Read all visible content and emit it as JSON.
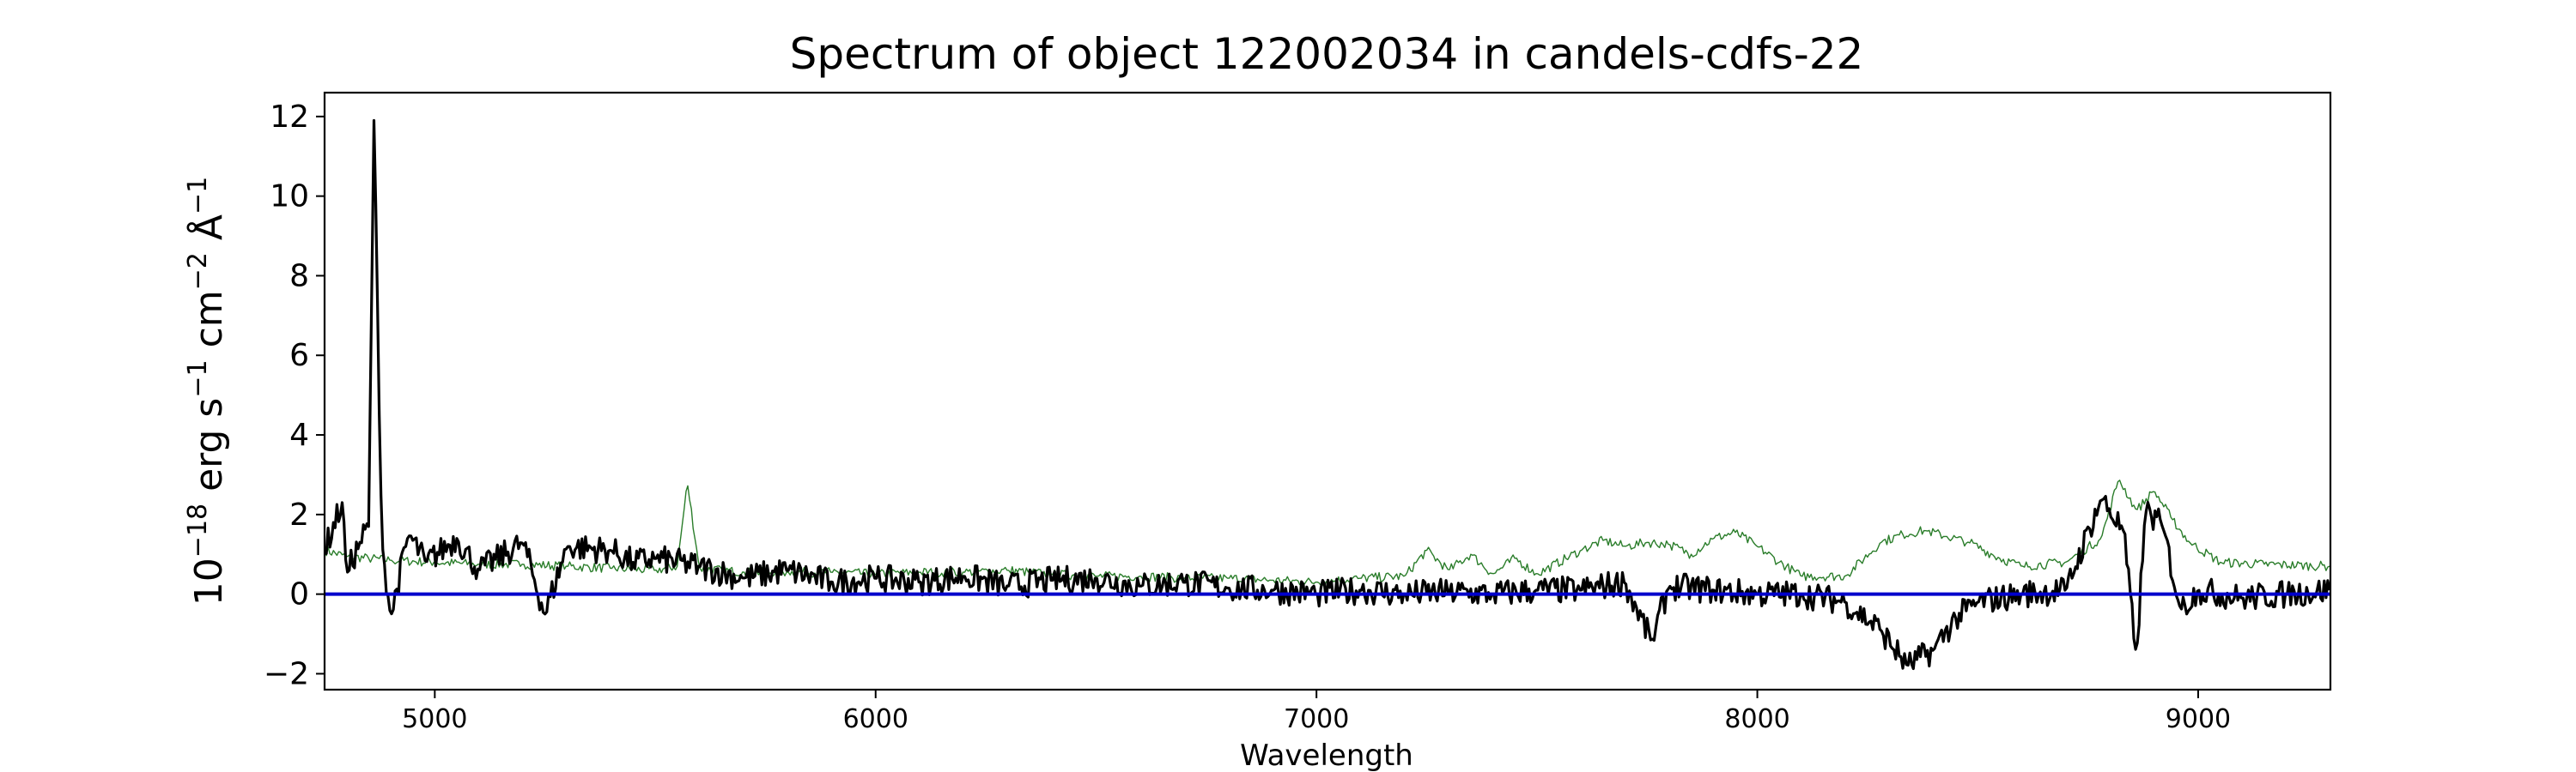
{
  "chart_data": {
    "type": "line",
    "title": "Spectrum of object 122002034 in candels-cdfs-22",
    "xlabel": "Wavelength",
    "ylabel_base": "10",
    "ylabel_exp": "−18",
    "ylabel_rest": " erg s",
    "ylabel_s_exp": "−1",
    "ylabel_cm": " cm",
    "ylabel_cm_exp": "−2",
    "ylabel_ang": " Å",
    "ylabel_ang_exp": "−1",
    "xlim": [
      4750,
      9300
    ],
    "ylim": [
      -2.4,
      12.6
    ],
    "xticks": [
      5000,
      6000,
      7000,
      8000,
      9000
    ],
    "xtick_labels": [
      "5000",
      "6000",
      "7000",
      "8000",
      "9000"
    ],
    "yticks": [
      -2,
      0,
      2,
      4,
      6,
      8,
      10,
      12
    ],
    "ytick_labels": [
      "−2",
      "0",
      "2",
      "4",
      "6",
      "8",
      "10",
      "12"
    ],
    "grid": false,
    "series": [
      {
        "role": "noise",
        "color": "#2a7d2a",
        "points": [
          [
            4750,
            1.1
          ],
          [
            4800,
            0.95
          ],
          [
            4850,
            0.9
          ],
          [
            4900,
            0.85
          ],
          [
            5000,
            0.8
          ],
          [
            5100,
            0.75
          ],
          [
            5200,
            0.75
          ],
          [
            5300,
            0.7
          ],
          [
            5400,
            0.65
          ],
          [
            5500,
            0.6
          ],
          [
            5550,
            0.7
          ],
          [
            5573,
            2.8
          ],
          [
            5600,
            0.65
          ],
          [
            5700,
            0.55
          ],
          [
            5800,
            0.55
          ],
          [
            5900,
            0.55
          ],
          [
            6000,
            0.5
          ],
          [
            6100,
            0.55
          ],
          [
            6200,
            0.55
          ],
          [
            6300,
            0.6
          ],
          [
            6400,
            0.5
          ],
          [
            6500,
            0.45
          ],
          [
            6600,
            0.45
          ],
          [
            6700,
            0.4
          ],
          [
            6800,
            0.4
          ],
          [
            6900,
            0.35
          ],
          [
            7000,
            0.3
          ],
          [
            7100,
            0.4
          ],
          [
            7200,
            0.45
          ],
          [
            7250,
            1.1
          ],
          [
            7300,
            0.6
          ],
          [
            7350,
            1.0
          ],
          [
            7400,
            0.5
          ],
          [
            7450,
            0.9
          ],
          [
            7500,
            0.5
          ],
          [
            7600,
            1.1
          ],
          [
            7650,
            1.35
          ],
          [
            7700,
            1.2
          ],
          [
            7750,
            1.3
          ],
          [
            7800,
            1.25
          ],
          [
            7850,
            1.0
          ],
          [
            7900,
            1.4
          ],
          [
            7950,
            1.55
          ],
          [
            8000,
            1.2
          ],
          [
            8050,
            0.8
          ],
          [
            8100,
            0.45
          ],
          [
            8200,
            0.45
          ],
          [
            8280,
            1.3
          ],
          [
            8330,
            1.5
          ],
          [
            8380,
            1.6
          ],
          [
            8430,
            1.45
          ],
          [
            8480,
            1.3
          ],
          [
            8550,
            0.9
          ],
          [
            8600,
            0.7
          ],
          [
            8700,
            0.8
          ],
          [
            8780,
            1.4
          ],
          [
            8820,
            2.9
          ],
          [
            8860,
            2.1
          ],
          [
            8900,
            2.6
          ],
          [
            8940,
            1.9
          ],
          [
            8980,
            1.3
          ],
          [
            9050,
            0.8
          ],
          [
            9150,
            0.75
          ],
          [
            9300,
            0.7
          ]
        ]
      },
      {
        "role": "flux",
        "color": "#000000",
        "points": [
          [
            4750,
            1.1
          ],
          [
            4790,
            2.3
          ],
          [
            4800,
            0.5
          ],
          [
            4830,
            1.3
          ],
          [
            4850,
            1.7
          ],
          [
            4862,
            11.9
          ],
          [
            4880,
            1.3
          ],
          [
            4900,
            -0.6
          ],
          [
            4940,
            1.5
          ],
          [
            4980,
            0.8
          ],
          [
            5050,
            1.4
          ],
          [
            5100,
            0.6
          ],
          [
            5200,
            1.3
          ],
          [
            5250,
            -0.5
          ],
          [
            5300,
            1.2
          ],
          [
            5400,
            1.1
          ],
          [
            5450,
            0.8
          ],
          [
            5500,
            0.9
          ],
          [
            5600,
            0.7
          ],
          [
            5700,
            0.4
          ],
          [
            5800,
            0.6
          ],
          [
            5900,
            0.3
          ],
          [
            6000,
            0.4
          ],
          [
            6100,
            0.3
          ],
          [
            6200,
            0.45
          ],
          [
            6300,
            0.2
          ],
          [
            6400,
            0.35
          ],
          [
            6500,
            0.4
          ],
          [
            6600,
            0.2
          ],
          [
            6700,
            0.3
          ],
          [
            6800,
            0.15
          ],
          [
            6900,
            0.1
          ],
          [
            7000,
            0.0
          ],
          [
            7100,
            0.1
          ],
          [
            7200,
            0.0
          ],
          [
            7300,
            0.05
          ],
          [
            7400,
            0.0
          ],
          [
            7500,
            0.1
          ],
          [
            7600,
            0.1
          ],
          [
            7700,
            0.3
          ],
          [
            7760,
            -1.2
          ],
          [
            7800,
            0.2
          ],
          [
            7900,
            0.1
          ],
          [
            8000,
            0.0
          ],
          [
            8100,
            0.0
          ],
          [
            8200,
            -0.2
          ],
          [
            8280,
            -0.9
          ],
          [
            8340,
            -1.8
          ],
          [
            8400,
            -1.4
          ],
          [
            8450,
            -0.6
          ],
          [
            8500,
            -0.2
          ],
          [
            8600,
            0.0
          ],
          [
            8700,
            0.1
          ],
          [
            8780,
            2.4
          ],
          [
            8830,
            1.6
          ],
          [
            8860,
            -1.6
          ],
          [
            8880,
            2.1
          ],
          [
            8920,
            1.7
          ],
          [
            8960,
            -0.4
          ],
          [
            9000,
            0.1
          ],
          [
            9100,
            -0.1
          ],
          [
            9200,
            0.0
          ],
          [
            9300,
            0.1
          ]
        ]
      },
      {
        "role": "zero-line",
        "color": "#0000cc",
        "points": [
          [
            4750,
            0
          ],
          [
            9300,
            0
          ]
        ]
      }
    ]
  }
}
